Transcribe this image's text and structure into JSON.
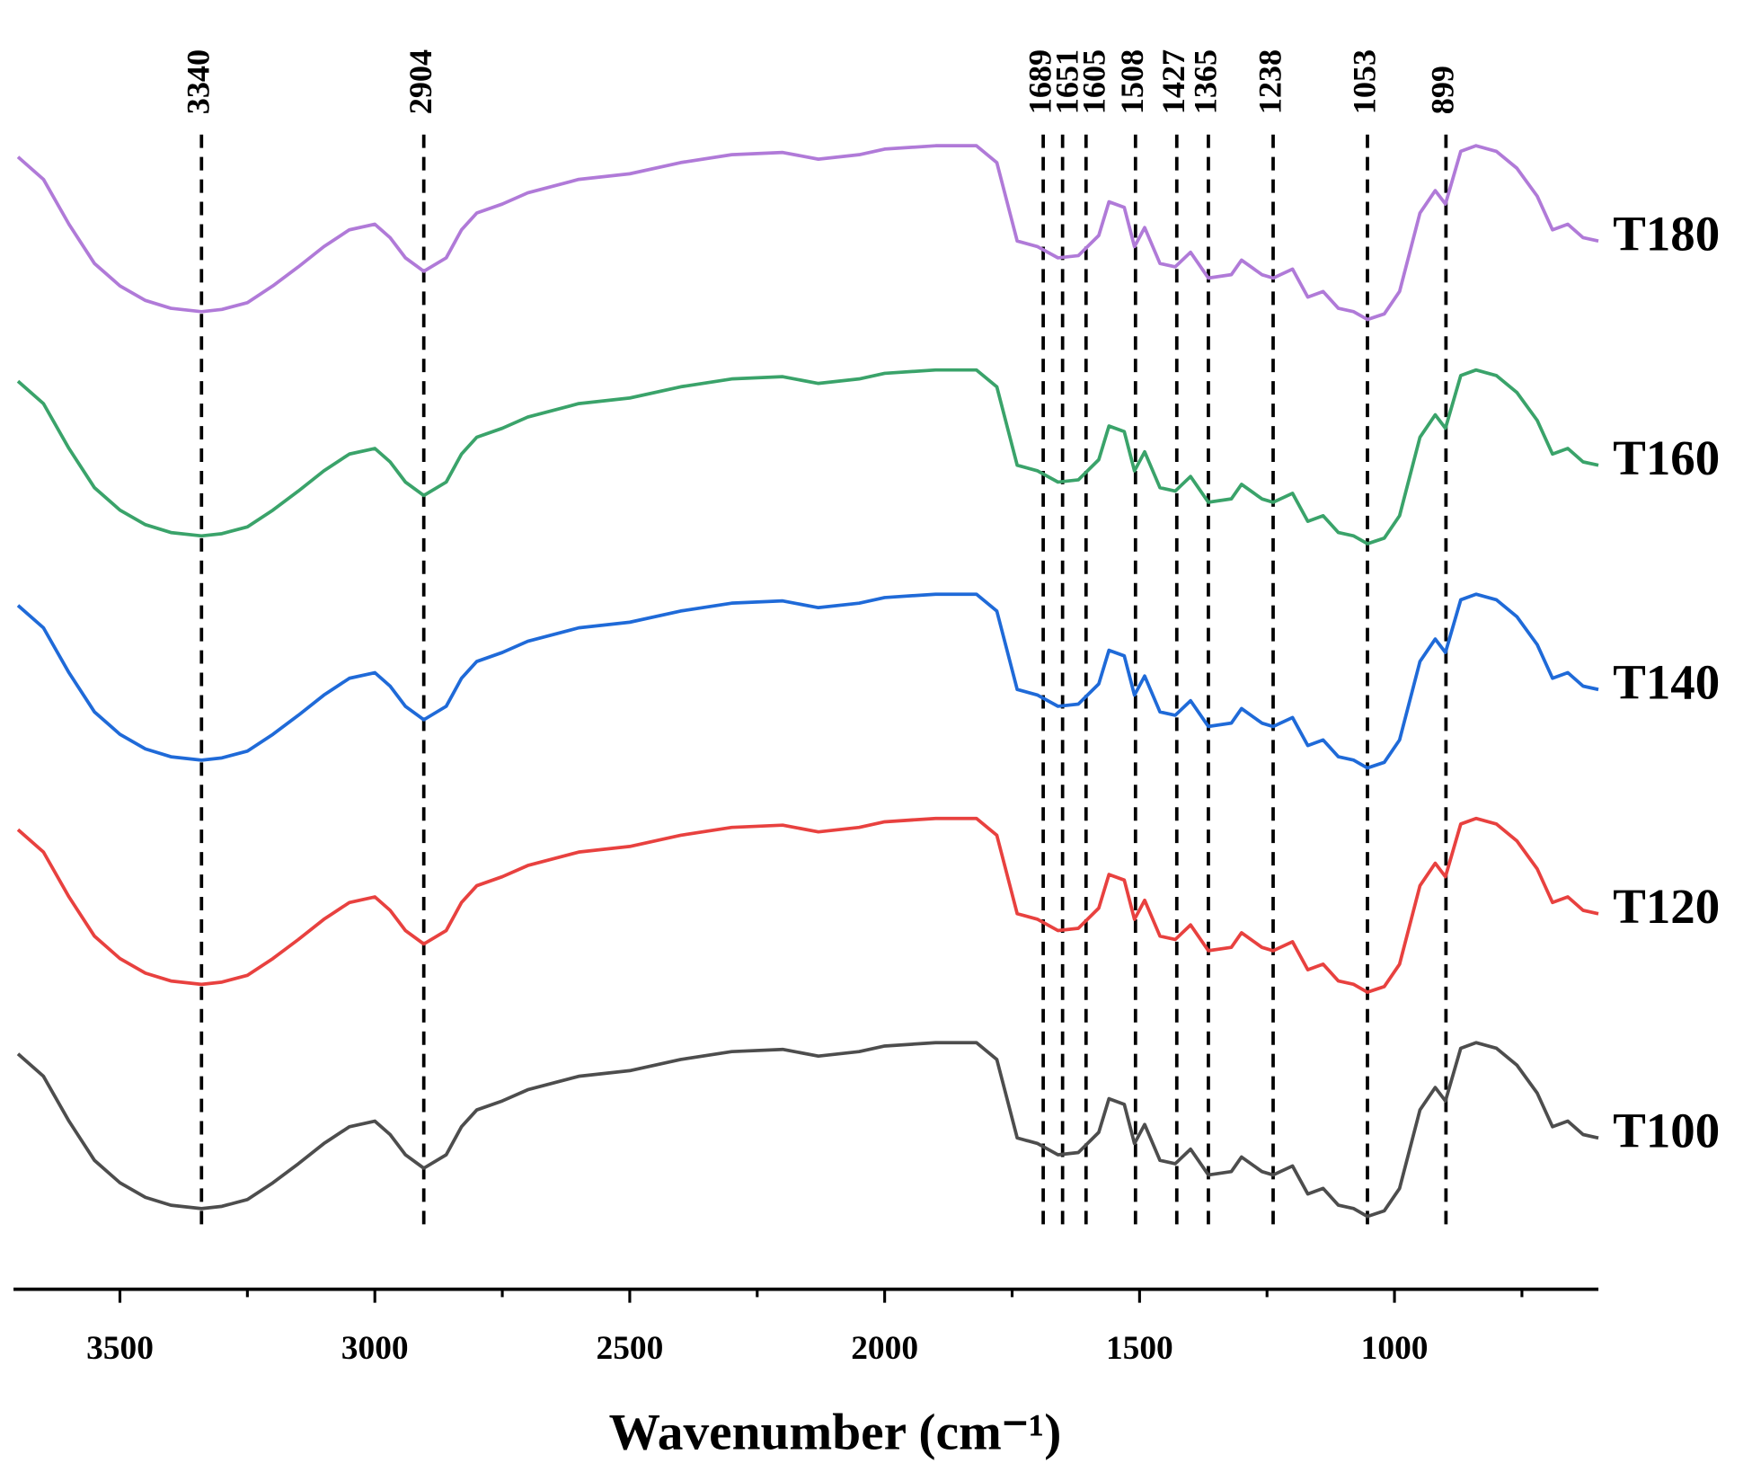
{
  "chart_data": {
    "type": "line",
    "xlabel": "Wavenumber (cm⁻¹)",
    "xlim": [
      3700,
      600
    ],
    "xticks": [
      3500,
      3000,
      2500,
      2000,
      1500,
      1000
    ],
    "xminorticks": [
      3250,
      2750,
      2250,
      1750,
      1250,
      750
    ],
    "ylim": [
      0,
      104
    ],
    "peaks": [
      3340,
      2904,
      1689,
      1651,
      1605,
      1508,
      1427,
      1365,
      1238,
      1053,
      899
    ],
    "x": [
      3700,
      3650,
      3600,
      3550,
      3500,
      3450,
      3400,
      3340,
      3300,
      3250,
      3200,
      3150,
      3100,
      3050,
      3000,
      2970,
      2940,
      2904,
      2860,
      2830,
      2800,
      2750,
      2700,
      2600,
      2500,
      2400,
      2300,
      2200,
      2130,
      2050,
      2000,
      1900,
      1820,
      1780,
      1760,
      1740,
      1700,
      1660,
      1620,
      1580,
      1560,
      1530,
      1510,
      1490,
      1460,
      1430,
      1400,
      1365,
      1320,
      1300,
      1260,
      1238,
      1200,
      1170,
      1140,
      1110,
      1080,
      1053,
      1020,
      990,
      950,
      920,
      900,
      870,
      840,
      800,
      760,
      720,
      690,
      660,
      630,
      600
    ],
    "series": [
      {
        "name": "T100",
        "color": "#4d4d4d",
        "values": [
          21,
          19,
          15,
          11.5,
          9.5,
          8.2,
          7.5,
          7.2,
          7.4,
          8,
          9.5,
          11.2,
          13,
          14.5,
          15,
          13.8,
          12,
          10.8,
          12,
          14.5,
          16,
          16.8,
          17.8,
          19,
          19.5,
          20.5,
          21.2,
          21.4,
          20.8,
          21.2,
          21.7,
          22,
          22,
          20.5,
          17,
          13.5,
          13,
          12,
          12.2,
          14,
          17,
          16.5,
          13,
          14.7,
          11.5,
          11.2,
          12.5,
          10.2,
          10.5,
          11.8,
          10.5,
          10.2,
          11,
          8.5,
          9,
          7.5,
          7.2,
          6.5,
          7,
          9,
          16,
          18,
          16.8,
          21.5,
          22,
          21.5,
          20,
          17.5,
          14.5,
          15,
          13.8,
          13.5
        ]
      },
      {
        "name": "T120",
        "color": "#e8413f",
        "values": [
          41,
          39,
          35,
          31.5,
          29.5,
          28.2,
          27.5,
          27.2,
          27.4,
          28,
          29.5,
          31.2,
          33,
          34.5,
          35,
          33.8,
          32,
          30.8,
          32,
          34.5,
          36,
          36.8,
          37.8,
          39,
          39.5,
          40.5,
          41.2,
          41.4,
          40.8,
          41.2,
          41.7,
          42,
          42,
          40.5,
          37,
          33.5,
          33,
          32,
          32.2,
          34,
          37,
          36.5,
          33,
          34.7,
          31.5,
          31.2,
          32.5,
          30.2,
          30.5,
          31.8,
          30.5,
          30.2,
          31,
          28.5,
          29,
          27.5,
          27.2,
          26.5,
          27,
          29,
          36,
          38,
          36.8,
          41.5,
          42,
          41.5,
          40,
          37.5,
          34.5,
          35,
          33.8,
          33.5
        ]
      },
      {
        "name": "T140",
        "color": "#1f6ad8",
        "values": [
          61,
          59,
          55,
          51.5,
          49.5,
          48.2,
          47.5,
          47.2,
          47.4,
          48,
          49.5,
          51.2,
          53,
          54.5,
          55,
          53.8,
          52,
          50.8,
          52,
          54.5,
          56,
          56.8,
          57.8,
          59,
          59.5,
          60.5,
          61.2,
          61.4,
          60.8,
          61.2,
          61.7,
          62,
          62,
          60.5,
          57,
          53.5,
          53,
          52,
          52.2,
          54,
          57,
          56.5,
          53,
          54.7,
          51.5,
          51.2,
          52.5,
          50.2,
          50.5,
          51.8,
          50.5,
          50.2,
          51,
          48.5,
          49,
          47.5,
          47.2,
          46.5,
          47,
          49,
          56,
          58,
          56.8,
          61.5,
          62,
          61.5,
          60,
          57.5,
          54.5,
          55,
          53.8,
          53.5
        ]
      },
      {
        "name": "T160",
        "color": "#3aa36a",
        "values": [
          81,
          79,
          75,
          71.5,
          69.5,
          68.2,
          67.5,
          67.2,
          67.4,
          68,
          69.5,
          71.2,
          73,
          74.5,
          75,
          73.8,
          72,
          70.8,
          72,
          74.5,
          76,
          76.8,
          77.8,
          79,
          79.5,
          80.5,
          81.2,
          81.4,
          80.8,
          81.2,
          81.7,
          82,
          82,
          80.5,
          77,
          73.5,
          73,
          72,
          72.2,
          74,
          77,
          76.5,
          73,
          74.7,
          71.5,
          71.2,
          72.5,
          70.2,
          70.5,
          71.8,
          70.5,
          70.2,
          71,
          68.5,
          69,
          67.5,
          67.2,
          66.5,
          67,
          69,
          76,
          78,
          76.8,
          81.5,
          82,
          81.5,
          80,
          77.5,
          74.5,
          75,
          73.8,
          73.5
        ]
      },
      {
        "name": "T180",
        "color": "#b07ad8",
        "values": [
          101,
          99,
          95,
          91.5,
          89.5,
          88.2,
          87.5,
          87.2,
          87.4,
          88,
          89.5,
          91.2,
          93,
          94.5,
          95,
          93.8,
          92,
          90.8,
          92,
          94.5,
          96,
          96.8,
          97.8,
          99,
          99.5,
          100.5,
          101.2,
          101.4,
          100.8,
          101.2,
          101.7,
          102,
          102,
          100.5,
          97,
          93.5,
          93,
          92,
          92.2,
          94,
          97,
          96.5,
          93,
          94.7,
          91.5,
          91.2,
          92.5,
          90.2,
          90.5,
          91.8,
          90.5,
          90.2,
          91,
          88.5,
          89,
          87.5,
          87.2,
          86.5,
          87,
          89,
          96,
          98,
          96.8,
          101.5,
          102,
          101.5,
          100,
          97.5,
          94.5,
          95,
          93.8,
          93.5
        ]
      }
    ]
  }
}
